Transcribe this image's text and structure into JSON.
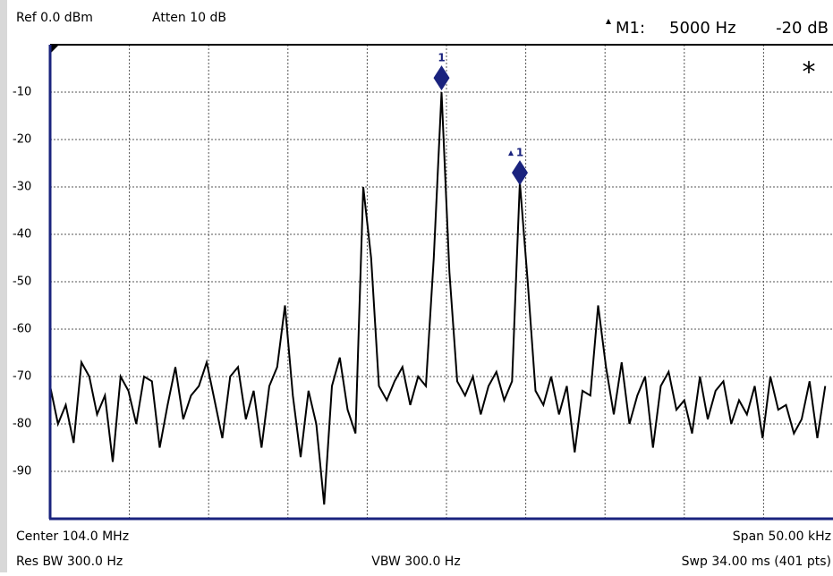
{
  "header": {
    "ref": "Ref 0.0 dBm",
    "atten": "Atten 10 dB",
    "marker_name": "M1:",
    "marker_freq": "5000 Hz",
    "marker_level": "-20 dB"
  },
  "chart_data": {
    "type": "line",
    "color": "#000000",
    "grid": true,
    "ylim": [
      -100,
      0
    ],
    "yticks": [
      -10,
      -20,
      -30,
      -40,
      -50,
      -60,
      -70,
      -80,
      -90
    ],
    "values": [
      -72,
      -80,
      -76,
      -84,
      -67,
      -70,
      -78,
      -74,
      -88,
      -70,
      -73,
      -80,
      -70,
      -71,
      -85,
      -76,
      -68,
      -79,
      -74,
      -72,
      -67,
      -75,
      -83,
      -70,
      -68,
      -79,
      -73,
      -85,
      -72,
      -68,
      -55,
      -74,
      -87,
      -73,
      -80,
      -97,
      -72,
      -66,
      -77,
      -82,
      -30,
      -45,
      -72,
      -75,
      -71,
      -68,
      -76,
      -70,
      -72,
      -45,
      -10,
      -48,
      -71,
      -74,
      -70,
      -78,
      -72,
      -69,
      -75,
      -71,
      -29,
      -50,
      -73,
      -76,
      -70,
      -78,
      -72,
      -86,
      -73,
      -74,
      -55,
      -68,
      -78,
      -67,
      -80,
      -74,
      -70,
      -85,
      -72,
      -69,
      -77,
      -75,
      -82,
      -70,
      -79,
      -73,
      -71,
      -80,
      -75,
      -78,
      -72,
      -83,
      -70,
      -77,
      -76,
      -82,
      -79,
      -71,
      -83,
      -72
    ],
    "markers": [
      {
        "label": "1",
        "x": 50,
        "y": -7,
        "color": "#1a237e"
      },
      {
        "label": "1",
        "x": 60,
        "y": -27,
        "color": "#1a237e"
      }
    ],
    "annotation": "*"
  },
  "footer": {
    "center": "Center 104.0 MHz",
    "span": "Span 50.00 kHz",
    "rbw": "Res BW 300.0  Hz",
    "vbw": "VBW 300.0  Hz",
    "swp": "Swp 34.00 ms (401 pts)"
  }
}
